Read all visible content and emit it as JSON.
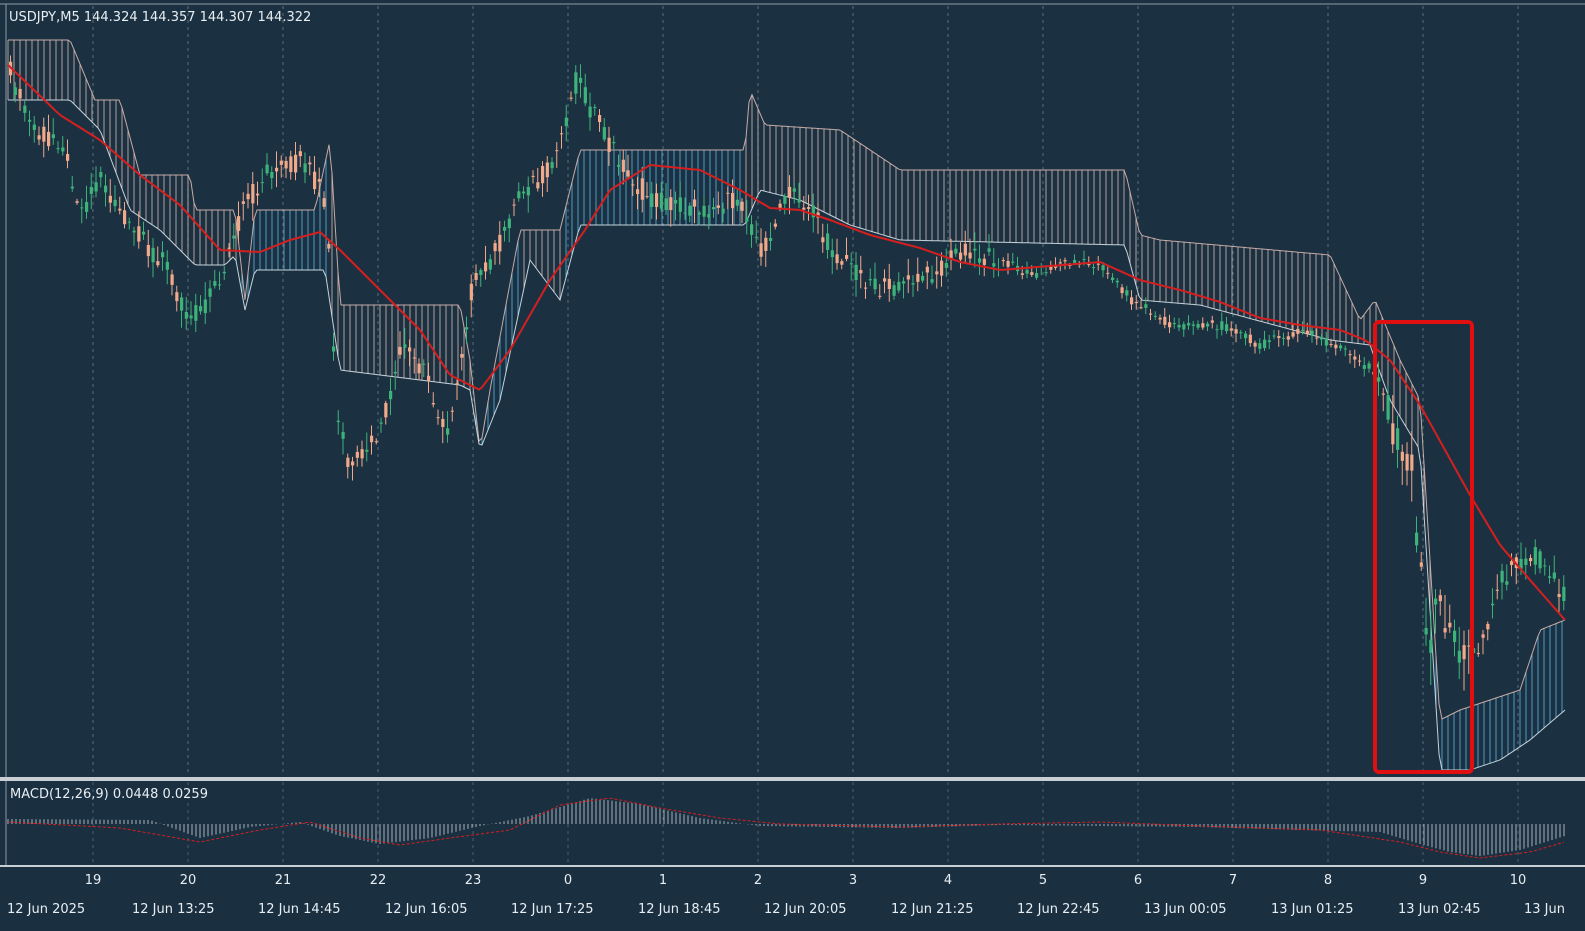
{
  "symbol_header": "USDJPY,M5  144.324 144.357 144.307 144.322",
  "indicator_header": "MACD(12,26,9) 0.0448 0.0259",
  "colors": {
    "background": "#1a2f40",
    "bull_candle": "#3db37a",
    "bear_candle": "#f2a98a",
    "ma_line": "#d51f1f",
    "cloud_bear": "#d9b8b0",
    "cloud_bull": "#5ab7e6",
    "highlight_box": "#e01010",
    "grid": "#aab8c4"
  },
  "hour_labels": [
    "19",
    "20",
    "21",
    "22",
    "23",
    "0",
    "1",
    "2",
    "3",
    "4",
    "5",
    "6",
    "7",
    "8",
    "9",
    "10"
  ],
  "time_labels": [
    "12 Jun 2025",
    "12 Jun 13:25",
    "12 Jun 14:45",
    "12 Jun 16:05",
    "12 Jun 17:25",
    "12 Jun 18:45",
    "12 Jun 20:05",
    "12 Jun 21:25",
    "12 Jun 22:45",
    "13 Jun 00:05",
    "13 Jun 01:25",
    "13 Jun 02:45",
    "13 Jun"
  ],
  "chart_data": {
    "type": "candlestick",
    "symbol": "USDJPY",
    "timeframe": "M5",
    "last_ohlc": {
      "open": 144.324,
      "high": 144.357,
      "low": 144.307,
      "close": 144.322
    },
    "macd": {
      "params": "12,26,9",
      "main": 0.0448,
      "signal": 0.0259
    },
    "indicators": [
      "Ichimoku cloud",
      "Moving average",
      "MACD histogram"
    ]
  }
}
